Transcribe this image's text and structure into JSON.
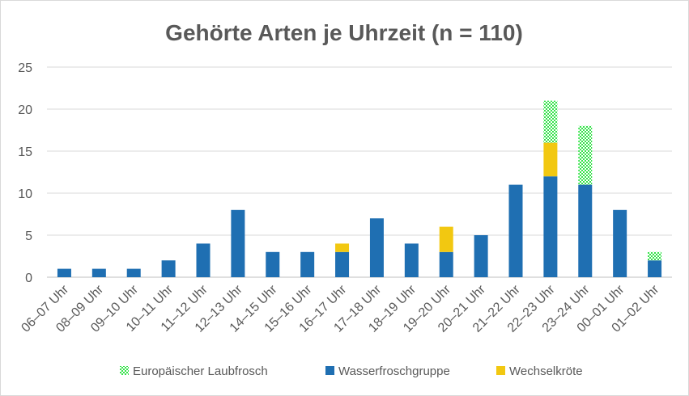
{
  "chart_data": {
    "type": "bar",
    "stacked": true,
    "title": "Gehörte Arten je Uhrzeit (n = 110)",
    "xlabel": "",
    "ylabel": "",
    "ylim": [
      0,
      25
    ],
    "yticks": [
      0,
      5,
      10,
      15,
      20,
      25
    ],
    "grid": true,
    "legend_position": "bottom",
    "categories": [
      "06–07 Uhr",
      "08–09 Uhr",
      "09–10 Uhr",
      "10–11 Uhr",
      "11–12 Uhr",
      "12–13 Uhr",
      "14–15 Uhr",
      "15–16 Uhr",
      "16–17 Uhr",
      "17–18 Uhr",
      "18–19 Uhr",
      "19–20 Uhr",
      "20–21 Uhr",
      "21–22 Uhr",
      "22–23 Uhr",
      "23–24 Uhr",
      "00–01 Uhr",
      "01–02 Uhr"
    ],
    "series": [
      {
        "name": "Wasserfroschgruppe",
        "color": "#1f6fb2",
        "pattern": "solid",
        "values": [
          1,
          1,
          1,
          2,
          4,
          8,
          3,
          3,
          3,
          7,
          4,
          3,
          5,
          11,
          12,
          11,
          8,
          2
        ]
      },
      {
        "name": "Wechselkröte",
        "color": "#f2c811",
        "pattern": "solid",
        "values": [
          0,
          0,
          0,
          0,
          0,
          0,
          0,
          0,
          1,
          0,
          0,
          3,
          0,
          0,
          4,
          0,
          0,
          0
        ]
      },
      {
        "name": "Europäischer Laubfrosch",
        "color": "#35e24a",
        "pattern": "checker",
        "values": [
          0,
          0,
          0,
          0,
          0,
          0,
          0,
          0,
          0,
          0,
          0,
          0,
          0,
          0,
          5,
          7,
          0,
          1
        ]
      }
    ],
    "legend_order": [
      "Europäischer Laubfrosch",
      "Wasserfroschgruppe",
      "Wechselkröte"
    ]
  }
}
